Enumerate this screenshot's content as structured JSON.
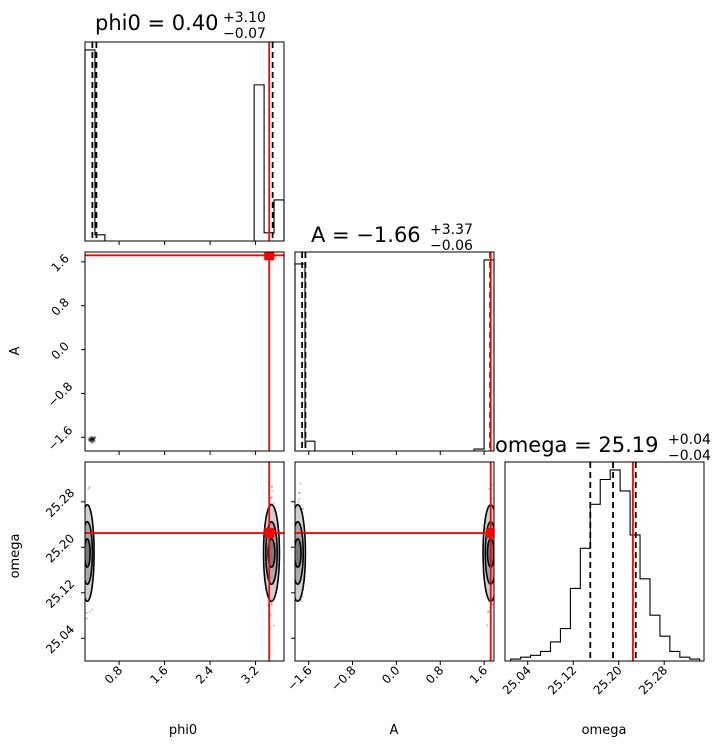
{
  "chart_data": {
    "type": "corner",
    "params": [
      "phi0",
      "A",
      "omega"
    ],
    "axis_labels": [
      "phi0",
      "A",
      "omega"
    ],
    "truth_color": "#ff0000",
    "truths": {
      "phi0": 3.44,
      "A": 1.72,
      "omega": 25.225
    },
    "ranges": {
      "phi0": [
        0.2,
        3.7
      ],
      "A": [
        -1.85,
        1.78
      ],
      "omega": [
        25.0,
        25.35
      ]
    },
    "ticks": {
      "phi0": [
        "0.8",
        "1.6",
        "2.4",
        "3.2"
      ],
      "A": [
        "-1.6",
        "-0.8",
        "0.0",
        "0.8",
        "1.6"
      ],
      "omega": [
        "25.04",
        "25.12",
        "25.20",
        "25.28"
      ]
    },
    "titles": [
      {
        "param": "phi0",
        "base": "phi0 = 0.40",
        "plus": "+3.10",
        "minus": "−0.07"
      },
      {
        "param": "A",
        "base": "A = −1.66",
        "plus": "+3.37",
        "minus": "−0.06"
      },
      {
        "param": "omega",
        "base": "omega = 25.19",
        "plus": "+0.04",
        "minus": "−0.04"
      }
    ],
    "quantiles": {
      "phi0": [
        0.33,
        0.4,
        3.5
      ],
      "A": [
        -1.72,
        -1.66,
        1.71
      ],
      "omega": [
        25.15,
        25.19,
        25.23
      ]
    },
    "hist": {
      "phi0": {
        "edges": [
          0.2,
          0.375,
          0.55,
          0.725,
          0.9,
          1.075,
          1.25,
          1.425,
          1.6,
          1.775,
          1.95,
          2.125,
          2.3,
          2.475,
          2.65,
          2.825,
          3.0,
          3.175,
          3.35,
          3.525,
          3.7
        ],
        "counts": [
          0.93,
          0.03,
          0,
          0,
          0,
          0,
          0,
          0,
          0,
          0,
          0,
          0,
          0,
          0,
          0,
          0,
          0,
          0.76,
          0.04,
          0.2
        ]
      },
      "A": {
        "edges": [
          -1.85,
          -1.6685,
          -1.487,
          -1.3055,
          -1.124,
          -0.9425,
          -0.761,
          -0.5795,
          -0.398,
          -0.2165,
          -0.035,
          0.1465,
          0.328,
          0.5095,
          0.691,
          0.8725,
          1.054,
          1.2355,
          1.417,
          1.5985,
          1.78
        ],
        "counts": [
          0.95,
          0.05,
          0,
          0,
          0,
          0,
          0,
          0,
          0,
          0,
          0,
          0,
          0,
          0,
          0,
          0,
          0,
          0,
          0.01,
          0.97
        ]
      },
      "omega": {
        "edges": [
          25.01,
          25.0275,
          25.045,
          25.0625,
          25.08,
          25.0975,
          25.115,
          25.1325,
          25.15,
          25.1675,
          25.185,
          25.2025,
          25.22,
          25.2375,
          25.255,
          25.2725,
          25.29,
          25.3075,
          25.325,
          25.3425
        ],
        "counts": [
          0.01,
          0.02,
          0.03,
          0.05,
          0.1,
          0.17,
          0.38,
          0.59,
          0.82,
          0.95,
          1.0,
          0.89,
          0.66,
          0.43,
          0.24,
          0.13,
          0.05,
          0.02,
          0.01
        ]
      }
    },
    "samples": {
      "A_vs_phi0": [
        {
          "x": 0.33,
          "y": -1.64,
          "sx": 0.03,
          "sy": 0.025,
          "n": 60
        },
        {
          "x": 3.47,
          "y": 1.72,
          "sx": 0.03,
          "sy": 0.02,
          "n": 50
        }
      ],
      "omega_vs_phi0": [
        {
          "x": 0.26,
          "y": 25.19,
          "sx": 0.025,
          "sy": 0.05,
          "n": 110
        },
        {
          "x": 3.47,
          "y": 25.19,
          "sx": 0.025,
          "sy": 0.05,
          "n": 110
        }
      ],
      "omega_vs_A": [
        {
          "x": -1.76,
          "y": 25.19,
          "sx": 0.03,
          "sy": 0.05,
          "n": 110
        },
        {
          "x": 1.72,
          "y": 25.19,
          "sx": 0.03,
          "sy": 0.05,
          "n": 110
        }
      ]
    },
    "contours": {
      "omega_vs_phi0": [
        {
          "cx": 0.24,
          "cy": 25.19,
          "rx": [
            0.05,
            0.09,
            0.12
          ],
          "ry": [
            0.025,
            0.055,
            0.085
          ]
        },
        {
          "cx": 3.48,
          "cy": 25.19,
          "rx": [
            0.06,
            0.1,
            0.14
          ],
          "ry": [
            0.025,
            0.055,
            0.085
          ]
        }
      ],
      "omega_vs_A": [
        {
          "cx": -1.8,
          "cy": 25.19,
          "rx": [
            0.06,
            0.1,
            0.14
          ],
          "ry": [
            0.025,
            0.055,
            0.085
          ]
        },
        {
          "cx": 1.72,
          "cy": 25.19,
          "rx": [
            0.06,
            0.1,
            0.14
          ],
          "ry": [
            0.025,
            0.055,
            0.085
          ]
        }
      ]
    }
  }
}
